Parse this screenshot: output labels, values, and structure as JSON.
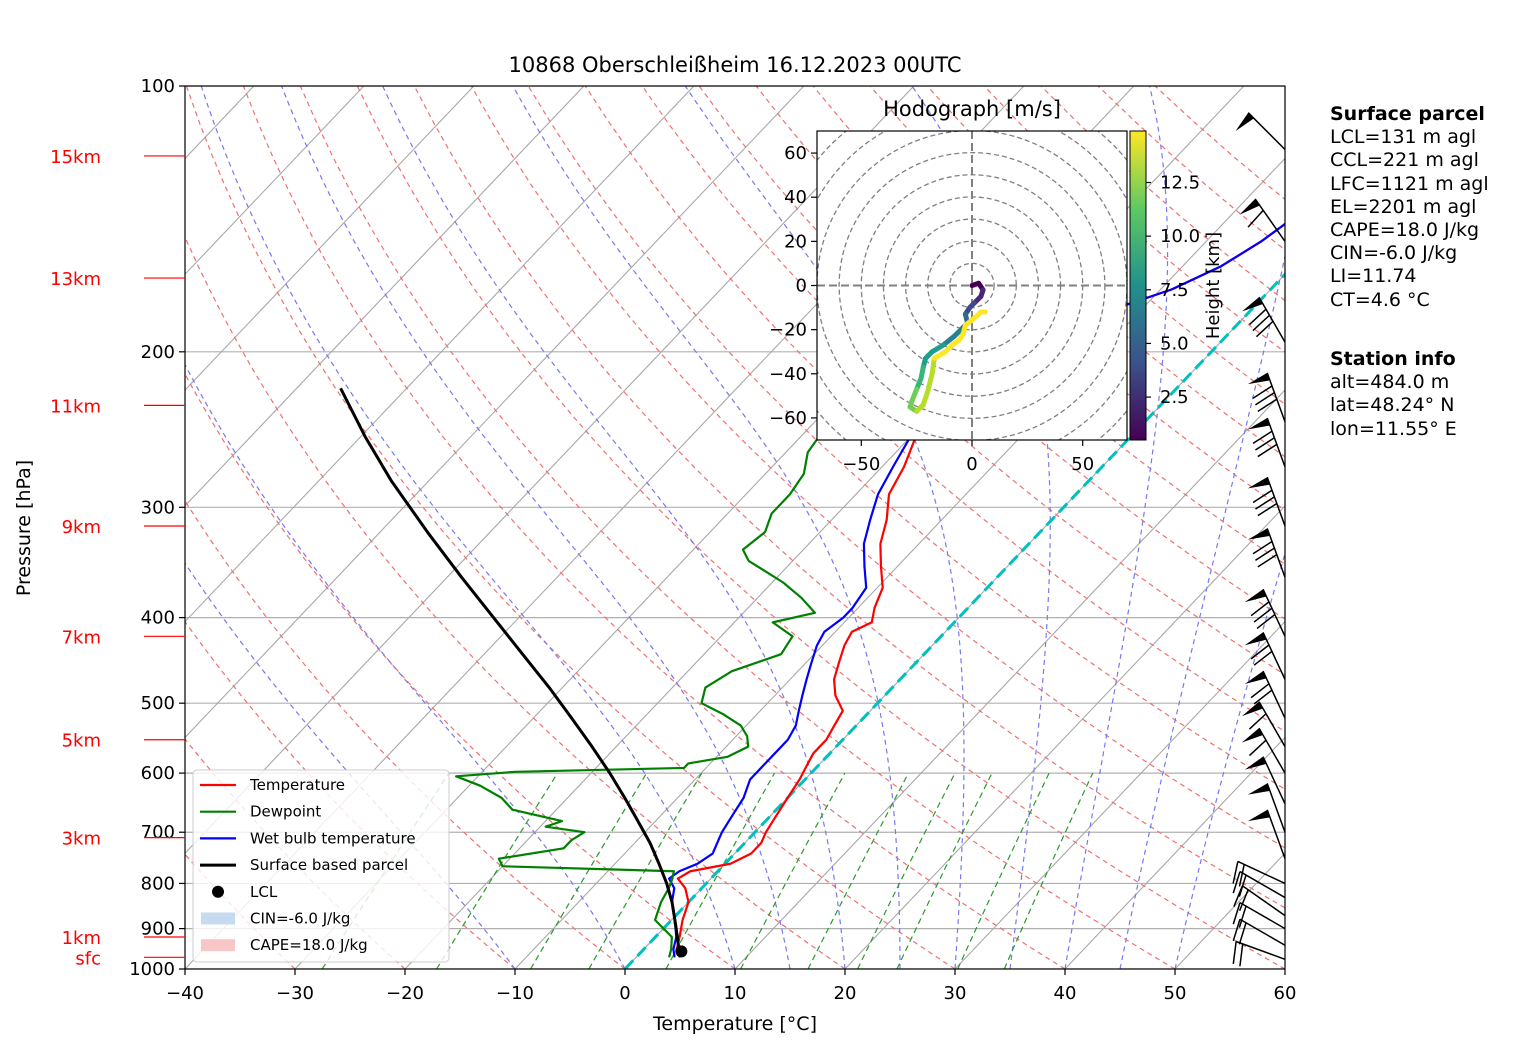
{
  "title": "10868 Oberschleißheim 16.12.2023 00UTC",
  "chart_data": {
    "type": "line",
    "subtype": "skew-T log-P",
    "xlabel": "Temperature [°C]",
    "ylabel": "Pressure [hPa]",
    "xlim": [
      -40,
      60
    ],
    "ylim": [
      1000,
      100
    ],
    "yscale": "log",
    "grid": true,
    "x_ticks": [
      "−40",
      "−30",
      "−20",
      "−10",
      "0",
      "10",
      "20",
      "30",
      "40",
      "50",
      "60"
    ],
    "y_ticks": [
      "100",
      "200",
      "300",
      "400",
      "500",
      "600",
      "700",
      "800",
      "900",
      "1000"
    ],
    "height_labels": [
      {
        "label": "sfc",
        "p": 970
      },
      {
        "label": "1km",
        "p": 920
      },
      {
        "label": "3km",
        "p": 710
      },
      {
        "label": "5km",
        "p": 550
      },
      {
        "label": "7km",
        "p": 420
      },
      {
        "label": "9km",
        "p": 315
      },
      {
        "label": "11km",
        "p": 230
      },
      {
        "label": "13km",
        "p": 165
      },
      {
        "label": "15km",
        "p": 120
      }
    ],
    "legend_position": "lower-left",
    "legend": [
      {
        "name": "Temperature",
        "color": "#ff0000",
        "kind": "line"
      },
      {
        "name": "Dewpoint",
        "color": "#008000",
        "kind": "line"
      },
      {
        "name": "Wet bulb temperature",
        "color": "#0000ff",
        "kind": "line"
      },
      {
        "name": "Surface based parcel",
        "color": "#000000",
        "kind": "line"
      },
      {
        "name": "LCL",
        "color": "#000000",
        "kind": "marker"
      },
      {
        "name": "CIN=-6.0 J/kg",
        "color": "#c6dbef",
        "kind": "patch"
      },
      {
        "name": "CAPE=18.0 J/kg",
        "color": "#f7c6c6",
        "kind": "patch"
      }
    ],
    "series": [
      {
        "name": "Temperature",
        "color": "#ff0000",
        "points": [
          [
            970,
            4.0
          ],
          [
            950,
            3.0
          ],
          [
            920,
            2.2
          ],
          [
            880,
            1.0
          ],
          [
            840,
            0.0
          ],
          [
            810,
            -1.5
          ],
          [
            790,
            -3.0
          ],
          [
            775,
            -2.5
          ],
          [
            760,
            0.5
          ],
          [
            740,
            1.5
          ],
          [
            720,
            1.5
          ],
          [
            700,
            1.0
          ],
          [
            670,
            0.5
          ],
          [
            640,
            0.0
          ],
          [
            610,
            -0.5
          ],
          [
            590,
            -1.0
          ],
          [
            570,
            -1.5
          ],
          [
            550,
            -1.5
          ],
          [
            530,
            -2.0
          ],
          [
            510,
            -2.5
          ],
          [
            490,
            -4.5
          ],
          [
            470,
            -6.0
          ],
          [
            450,
            -7.0
          ],
          [
            430,
            -8.0
          ],
          [
            415,
            -8.5
          ],
          [
            405,
            -7.5
          ],
          [
            390,
            -8.5
          ],
          [
            370,
            -9.5
          ],
          [
            350,
            -11.5
          ],
          [
            330,
            -13.5
          ],
          [
            310,
            -15.0
          ],
          [
            290,
            -17.0
          ],
          [
            270,
            -18.0
          ],
          [
            250,
            -19.5
          ],
          [
            235,
            -20.5
          ],
          [
            222,
            -21.0
          ],
          [
            212,
            -19.0
          ],
          [
            200,
            -17.0
          ],
          [
            190,
            -15.0
          ],
          [
            180,
            -13.0
          ],
          [
            170,
            -9.0
          ],
          [
            160,
            -6.5
          ],
          [
            150,
            -5.0
          ],
          [
            140,
            -4.0
          ],
          [
            130,
            -3.0
          ],
          [
            122,
            -3.0
          ],
          [
            115,
            -2.0
          ],
          [
            110,
            -1.5
          ]
        ]
      },
      {
        "name": "Wet bulb temperature",
        "color": "#0000ff",
        "points": [
          [
            970,
            3.5
          ],
          [
            950,
            2.7
          ],
          [
            920,
            1.9
          ],
          [
            880,
            0.3
          ],
          [
            840,
            -1.5
          ],
          [
            810,
            -2.5
          ],
          [
            790,
            -3.8
          ],
          [
            775,
            -3.5
          ],
          [
            760,
            -2.5
          ],
          [
            740,
            -2.0
          ],
          [
            720,
            -2.5
          ],
          [
            700,
            -3.0
          ],
          [
            670,
            -3.5
          ],
          [
            640,
            -4.0
          ],
          [
            610,
            -5.0
          ],
          [
            590,
            -5.0
          ],
          [
            570,
            -5.0
          ],
          [
            550,
            -5.0
          ],
          [
            530,
            -5.5
          ],
          [
            510,
            -6.5
          ],
          [
            490,
            -7.5
          ],
          [
            470,
            -8.5
          ],
          [
            450,
            -9.5
          ],
          [
            430,
            -10.5
          ],
          [
            415,
            -11.0
          ],
          [
            400,
            -10.5
          ],
          [
            390,
            -10.5
          ],
          [
            370,
            -11.0
          ],
          [
            350,
            -13.0
          ],
          [
            330,
            -15.0
          ],
          [
            310,
            -16.5
          ],
          [
            290,
            -18.0
          ],
          [
            270,
            -19.0
          ],
          [
            250,
            -20.0
          ],
          [
            235,
            -21.0
          ],
          [
            222,
            -21.5
          ],
          [
            212,
            -19.0
          ],
          [
            200,
            -17.0
          ],
          [
            190,
            -15.0
          ],
          [
            180,
            -13.0
          ],
          [
            170,
            -9.0
          ],
          [
            160,
            -6.5
          ],
          [
            150,
            -5.0
          ],
          [
            140,
            -4.0
          ],
          [
            130,
            -3.0
          ],
          [
            122,
            -3.0
          ],
          [
            115,
            -2.0
          ],
          [
            110,
            -1.5
          ]
        ]
      },
      {
        "name": "Dewpoint",
        "color": "#008000",
        "points": [
          [
            970,
            3.0
          ],
          [
            950,
            2.5
          ],
          [
            920,
            1.5
          ],
          [
            880,
            -1.5
          ],
          [
            840,
            -2.5
          ],
          [
            810,
            -3.0
          ],
          [
            790,
            -3.5
          ],
          [
            775,
            -4.0
          ],
          [
            765,
            -20.0
          ],
          [
            750,
            -21.0
          ],
          [
            730,
            -16.0
          ],
          [
            715,
            -16.0
          ],
          [
            700,
            -15.5
          ],
          [
            690,
            -19.5
          ],
          [
            680,
            -18.5
          ],
          [
            660,
            -24.0
          ],
          [
            640,
            -26.0
          ],
          [
            620,
            -29.0
          ],
          [
            605,
            -32.0
          ],
          [
            598,
            -27.0
          ],
          [
            592,
            -12.0
          ],
          [
            585,
            -12.0
          ],
          [
            575,
            -9.0
          ],
          [
            560,
            -8.0
          ],
          [
            545,
            -9.0
          ],
          [
            530,
            -10.5
          ],
          [
            515,
            -13.0
          ],
          [
            500,
            -16.0
          ],
          [
            480,
            -17.0
          ],
          [
            460,
            -16.0
          ],
          [
            440,
            -13.0
          ],
          [
            420,
            -13.5
          ],
          [
            405,
            -16.5
          ],
          [
            395,
            -13.5
          ],
          [
            380,
            -16.0
          ],
          [
            365,
            -19.0
          ],
          [
            345,
            -24.0
          ],
          [
            335,
            -25.5
          ],
          [
            320,
            -25.0
          ],
          [
            305,
            -26.0
          ],
          [
            290,
            -26.0
          ],
          [
            275,
            -26.5
          ],
          [
            260,
            -28.0
          ],
          [
            245,
            -28.5
          ],
          [
            232,
            -28.0
          ],
          [
            222,
            -29.0
          ],
          [
            215,
            -29.0
          ],
          [
            205,
            -29.5
          ],
          [
            195,
            -30.5
          ],
          [
            185,
            -31.5
          ],
          [
            178,
            -33.0
          ],
          [
            172,
            -33.0
          ],
          [
            165,
            -32.0
          ],
          [
            155,
            -31.5
          ],
          [
            145,
            -31.0
          ],
          [
            138,
            -30.0
          ],
          [
            130,
            -29.5
          ],
          [
            122,
            -28.0
          ],
          [
            116,
            -27.5
          ]
        ]
      },
      {
        "name": "Surface based parcel",
        "color": "#000000",
        "points": [
          [
            970,
            4.0
          ],
          [
            950,
            3.2
          ],
          [
            920,
            2.0
          ],
          [
            880,
            0.3
          ],
          [
            840,
            -1.5
          ],
          [
            800,
            -3.6
          ],
          [
            760,
            -6.0
          ],
          [
            720,
            -8.6
          ],
          [
            680,
            -11.6
          ],
          [
            640,
            -14.8
          ],
          [
            600,
            -18.3
          ],
          [
            560,
            -22.2
          ],
          [
            520,
            -26.5
          ],
          [
            480,
            -31.2
          ],
          [
            440,
            -36.5
          ],
          [
            400,
            -42.3
          ],
          [
            360,
            -48.7
          ],
          [
            320,
            -55.7
          ],
          [
            280,
            -63.4
          ],
          [
            250,
            -69.5
          ],
          [
            220,
            -76.0
          ]
        ]
      }
    ],
    "lcl": {
      "p": 955,
      "t": 3.6
    },
    "reference_line": {
      "name": "0 °C isotherm",
      "color": "#00bfbf"
    },
    "hodograph": {
      "title": "Hodograph [m/s]",
      "xlim": [
        -70,
        70
      ],
      "ylim": [
        -70,
        70
      ],
      "x_ticks": [
        "−50",
        "0",
        "50"
      ],
      "y_ticks": [
        "60",
        "40",
        "20",
        "0",
        "−20",
        "−40",
        "−60"
      ],
      "colorbar_label": "Height [km]",
      "colorbar_ticks": [
        "2.5",
        "5.0",
        "7.5",
        "10.0",
        "12.5"
      ],
      "points": [
        [
          0,
          0,
          0.5
        ],
        [
          3,
          1,
          0.8
        ],
        [
          5,
          -2,
          1.2
        ],
        [
          4,
          -5,
          1.8
        ],
        [
          1,
          -8,
          2.5
        ],
        [
          -1,
          -10,
          3.0
        ],
        [
          -3,
          -13,
          3.8
        ],
        [
          -2,
          -17,
          4.5
        ],
        [
          -5,
          -20,
          5.2
        ],
        [
          -8,
          -23,
          6.0
        ],
        [
          -13,
          -27,
          6.8
        ],
        [
          -18,
          -30,
          7.5
        ],
        [
          -21,
          -33,
          8.2
        ],
        [
          -22,
          -37,
          8.8
        ],
        [
          -23,
          -42,
          9.5
        ],
        [
          -25,
          -47,
          10.2
        ],
        [
          -27,
          -52,
          10.8
        ],
        [
          -28,
          -55,
          11.2
        ],
        [
          -25,
          -57,
          11.8
        ],
        [
          -22,
          -54,
          12.2
        ],
        [
          -20,
          -48,
          12.6
        ],
        [
          -18,
          -40,
          12.9
        ],
        [
          -17,
          -33,
          13.2
        ],
        [
          -12,
          -30,
          13.6
        ],
        [
          -9,
          -27,
          13.9
        ],
        [
          -6,
          -25,
          14.1
        ],
        [
          -4,
          -22,
          14.3
        ],
        [
          -3,
          -18,
          14.5
        ],
        [
          2,
          -14,
          14.7
        ],
        [
          4,
          -12,
          14.8
        ],
        [
          6,
          -12,
          14.9
        ]
      ]
    }
  },
  "surface_parcel": {
    "header": "Surface parcel",
    "lines": [
      "LCL=131 m agl",
      "CCL=221 m agl",
      "LFC=1121 m agl",
      "EL=2201 m agl",
      "CAPE=18.0 J/kg",
      "CIN=-6.0 J/kg",
      "LI=11.74",
      "CT=4.6 °C"
    ]
  },
  "station_info": {
    "header": "Station info",
    "lines": [
      "alt=484.0 m",
      "lat=48.24° N",
      "lon=11.55° E"
    ]
  }
}
